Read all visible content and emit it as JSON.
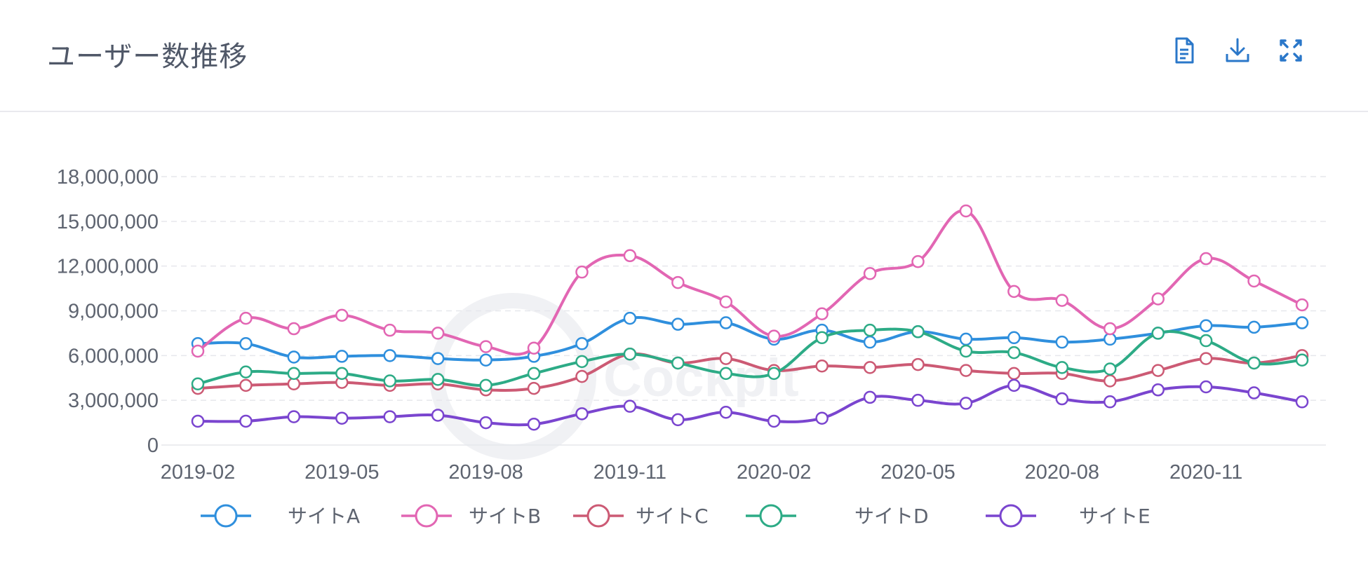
{
  "header": {
    "title": "ユーザー数推移",
    "tools": [
      {
        "icon": "document-icon",
        "name": "data-view-button"
      },
      {
        "icon": "download-icon",
        "name": "download-button"
      },
      {
        "icon": "fullscreen-icon",
        "name": "fullscreen-button"
      }
    ]
  },
  "watermark": "Cockpit",
  "chart_data": {
    "type": "line",
    "title": "ユーザー数推移",
    "xlabel": "",
    "ylabel": "",
    "ylim": [
      0,
      18000000
    ],
    "yticks": [
      0,
      3000000,
      6000000,
      9000000,
      12000000,
      15000000,
      18000000
    ],
    "ytick_labels": [
      "0",
      "3,000,000",
      "6,000,000",
      "9,000,000",
      "12,000,000",
      "15,000,000",
      "18,000,000"
    ],
    "x": [
      "2019-02",
      "2019-03",
      "2019-04",
      "2019-05",
      "2019-06",
      "2019-07",
      "2019-08",
      "2019-09",
      "2019-10",
      "2019-11",
      "2019-12",
      "2020-01",
      "2020-02",
      "2020-03",
      "2020-04",
      "2020-05",
      "2020-06",
      "2020-07",
      "2020-08",
      "2020-09",
      "2020-10",
      "2020-11",
      "2020-12",
      "2021-01"
    ],
    "xtick_labels": [
      "2019-02",
      "2019-05",
      "2019-08",
      "2019-11",
      "2020-02",
      "2020-05",
      "2020-08",
      "2020-11"
    ],
    "grid": true,
    "legend": "bottom",
    "series": [
      {
        "name": "サイトA",
        "color": "#2f8fdd",
        "values": [
          6800000,
          6800000,
          5900000,
          5950000,
          6000000,
          5800000,
          5700000,
          5950000,
          6800000,
          8500000,
          8100000,
          8200000,
          7100000,
          7700000,
          6900000,
          7600000,
          7100000,
          7200000,
          6900000,
          7100000,
          7500000,
          8000000,
          7900000,
          8200000
        ]
      },
      {
        "name": "サイトB",
        "color": "#e266b3",
        "values": [
          6300000,
          8500000,
          7800000,
          8700000,
          7700000,
          7500000,
          6600000,
          6500000,
          11600000,
          12700000,
          10900000,
          9600000,
          7300000,
          8800000,
          11500000,
          12300000,
          15700000,
          10300000,
          9700000,
          7800000,
          9800000,
          12500000,
          11000000,
          9400000
        ]
      },
      {
        "name": "サイトC",
        "color": "#cc5a74",
        "values": [
          3800000,
          4000000,
          4100000,
          4200000,
          4000000,
          4100000,
          3700000,
          3800000,
          4600000,
          6100000,
          5500000,
          5800000,
          5000000,
          5300000,
          5200000,
          5400000,
          5000000,
          4800000,
          4800000,
          4300000,
          5000000,
          5800000,
          5500000,
          6000000
        ]
      },
      {
        "name": "サイトD",
        "color": "#2dab86",
        "values": [
          4100000,
          4900000,
          4800000,
          4800000,
          4300000,
          4400000,
          4000000,
          4800000,
          5600000,
          6100000,
          5500000,
          4800000,
          4800000,
          7200000,
          7700000,
          7600000,
          6300000,
          6200000,
          5200000,
          5100000,
          7500000,
          7000000,
          5500000,
          5700000
        ]
      },
      {
        "name": "サイトE",
        "color": "#7a45cf",
        "values": [
          1600000,
          1600000,
          1900000,
          1800000,
          1900000,
          2000000,
          1500000,
          1400000,
          2100000,
          2600000,
          1700000,
          2200000,
          1600000,
          1800000,
          3200000,
          3000000,
          2800000,
          4000000,
          3100000,
          2900000,
          3700000,
          3900000,
          3500000,
          2900000
        ]
      }
    ]
  }
}
